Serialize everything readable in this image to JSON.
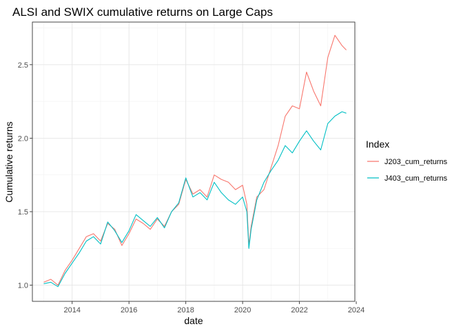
{
  "chart_data": {
    "type": "line",
    "title": "ALSI and SWIX cumulative returns on Large Caps",
    "xlabel": "date",
    "ylabel": "Cumulative returns",
    "x_ticks": [
      "2014",
      "2016",
      "2018",
      "2020",
      "2022",
      "2024"
    ],
    "x_tick_values": [
      2014,
      2016,
      2018,
      2020,
      2022,
      2024
    ],
    "y_ticks": [
      "1.0",
      "1.5",
      "2.0",
      "2.5"
    ],
    "y_tick_values": [
      1.0,
      1.5,
      2.0,
      2.5
    ],
    "xlim": [
      2012.6,
      2023.95
    ],
    "ylim": [
      0.89,
      2.79
    ],
    "grid": true,
    "legend": {
      "title": "Index",
      "position": "right"
    },
    "x": [
      2013.0,
      2013.25,
      2013.5,
      2013.75,
      2014.0,
      2014.25,
      2014.5,
      2014.75,
      2015.0,
      2015.25,
      2015.5,
      2015.75,
      2016.0,
      2016.25,
      2016.5,
      2016.75,
      2017.0,
      2017.25,
      2017.5,
      2017.75,
      2018.0,
      2018.25,
      2018.5,
      2018.75,
      2019.0,
      2019.25,
      2019.5,
      2019.75,
      2020.0,
      2020.15,
      2020.22,
      2020.3,
      2020.5,
      2020.75,
      2021.0,
      2021.25,
      2021.5,
      2021.75,
      2022.0,
      2022.25,
      2022.5,
      2022.75,
      2023.0,
      2023.25,
      2023.5,
      2023.65
    ],
    "series": [
      {
        "name": "J203_cum_returns",
        "color": "#F8766D",
        "values": [
          1.02,
          1.04,
          1.0,
          1.1,
          1.17,
          1.25,
          1.33,
          1.35,
          1.3,
          1.42,
          1.38,
          1.27,
          1.35,
          1.45,
          1.42,
          1.38,
          1.45,
          1.4,
          1.5,
          1.55,
          1.72,
          1.62,
          1.65,
          1.6,
          1.75,
          1.72,
          1.7,
          1.65,
          1.68,
          1.55,
          1.27,
          1.4,
          1.6,
          1.65,
          1.8,
          1.95,
          2.15,
          2.22,
          2.2,
          2.45,
          2.32,
          2.22,
          2.55,
          2.7,
          2.63,
          2.6
        ]
      },
      {
        "name": "J403_cum_returns",
        "color": "#00BFC4",
        "values": [
          1.01,
          1.02,
          0.99,
          1.08,
          1.15,
          1.22,
          1.3,
          1.33,
          1.28,
          1.43,
          1.37,
          1.29,
          1.37,
          1.48,
          1.44,
          1.4,
          1.46,
          1.39,
          1.5,
          1.56,
          1.73,
          1.6,
          1.63,
          1.58,
          1.7,
          1.63,
          1.58,
          1.55,
          1.6,
          1.5,
          1.25,
          1.38,
          1.58,
          1.7,
          1.78,
          1.85,
          1.95,
          1.9,
          1.98,
          2.05,
          1.98,
          1.92,
          2.1,
          2.15,
          2.18,
          2.17
        ]
      }
    ]
  }
}
